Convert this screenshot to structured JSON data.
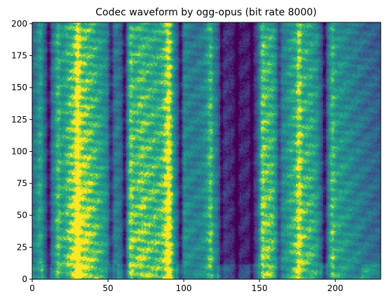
{
  "chart_data": {
    "type": "heatmap",
    "title": "Codec waveform by ogg-opus (bit rate 8000)",
    "xlabel": "",
    "ylabel": "",
    "xlim": [
      0,
      230
    ],
    "ylim": [
      0,
      201
    ],
    "x_ticks": [
      0,
      50,
      100,
      150,
      200
    ],
    "y_ticks": [
      0,
      25,
      50,
      75,
      100,
      125,
      150,
      175,
      200
    ],
    "colormap": "viridis",
    "grid": false,
    "legend": "none",
    "time_columns": 230,
    "frequency_bins": 201,
    "column_energy": [
      [
        0,
        0.4
      ],
      [
        4,
        0.55
      ],
      [
        8,
        0.35
      ],
      [
        11,
        0.25
      ],
      [
        13,
        0.45
      ],
      [
        16,
        0.55
      ],
      [
        20,
        0.62
      ],
      [
        25,
        0.78
      ],
      [
        30,
        0.85
      ],
      [
        35,
        0.82
      ],
      [
        40,
        0.75
      ],
      [
        45,
        0.65
      ],
      [
        49,
        0.55
      ],
      [
        52,
        0.35
      ],
      [
        55,
        0.48
      ],
      [
        58,
        0.42
      ],
      [
        61,
        0.25
      ],
      [
        63,
        0.55
      ],
      [
        67,
        0.7
      ],
      [
        72,
        0.78
      ],
      [
        78,
        0.72
      ],
      [
        84,
        0.7
      ],
      [
        88,
        0.8
      ],
      [
        92,
        0.75
      ],
      [
        95,
        0.45
      ],
      [
        98,
        0.25
      ],
      [
        100,
        0.55
      ],
      [
        104,
        0.5
      ],
      [
        108,
        0.48
      ],
      [
        112,
        0.5
      ],
      [
        116,
        0.62
      ],
      [
        119,
        0.55
      ],
      [
        122,
        0.45
      ],
      [
        125,
        0.25
      ],
      [
        130,
        0.15
      ],
      [
        135,
        0.12
      ],
      [
        140,
        0.12
      ],
      [
        145,
        0.15
      ],
      [
        148,
        0.25
      ],
      [
        151,
        0.6
      ],
      [
        155,
        0.75
      ],
      [
        159,
        0.7
      ],
      [
        163,
        0.48
      ],
      [
        167,
        0.55
      ],
      [
        172,
        0.68
      ],
      [
        178,
        0.72
      ],
      [
        184,
        0.68
      ],
      [
        188,
        0.6
      ],
      [
        191,
        0.35
      ],
      [
        193,
        0.25
      ],
      [
        196,
        0.52
      ],
      [
        200,
        0.62
      ],
      [
        205,
        0.58
      ],
      [
        210,
        0.52
      ],
      [
        215,
        0.48
      ],
      [
        220,
        0.42
      ],
      [
        225,
        0.38
      ],
      [
        230,
        0.35
      ]
    ],
    "bright_columns": [
      6,
      17,
      30,
      65,
      90,
      118,
      152,
      176,
      198
    ],
    "dark_columns": [
      11,
      52,
      61,
      98,
      125,
      135,
      145,
      163,
      193
    ]
  }
}
